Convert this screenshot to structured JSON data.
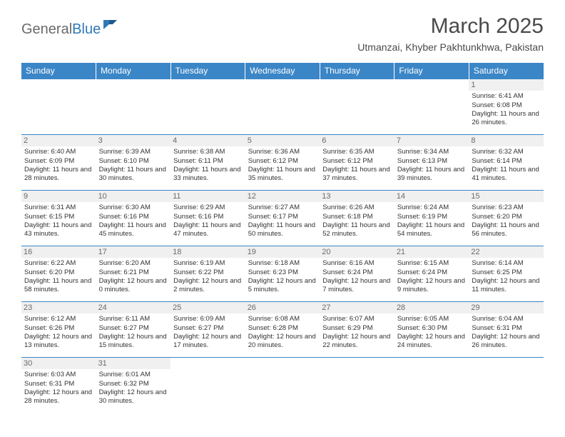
{
  "brand": {
    "name1": "General",
    "name2": "Blue",
    "mark_color": "#2f78b7"
  },
  "title": "March 2025",
  "location": "Utmanzai, Khyber Pakhtunkhwa, Pakistan",
  "colors": {
    "header_bg": "#3b86c6",
    "header_text": "#ffffff",
    "border": "#3b86c6",
    "daynum_bg": "#f0f0f0",
    "text": "#333333"
  },
  "day_headers": [
    "Sunday",
    "Monday",
    "Tuesday",
    "Wednesday",
    "Thursday",
    "Friday",
    "Saturday"
  ],
  "weeks": [
    [
      null,
      null,
      null,
      null,
      null,
      null,
      {
        "n": "1",
        "sunrise": "6:41 AM",
        "sunset": "6:08 PM",
        "daylight": "11 hours and 26 minutes."
      }
    ],
    [
      {
        "n": "2",
        "sunrise": "6:40 AM",
        "sunset": "6:09 PM",
        "daylight": "11 hours and 28 minutes."
      },
      {
        "n": "3",
        "sunrise": "6:39 AM",
        "sunset": "6:10 PM",
        "daylight": "11 hours and 30 minutes."
      },
      {
        "n": "4",
        "sunrise": "6:38 AM",
        "sunset": "6:11 PM",
        "daylight": "11 hours and 33 minutes."
      },
      {
        "n": "5",
        "sunrise": "6:36 AM",
        "sunset": "6:12 PM",
        "daylight": "11 hours and 35 minutes."
      },
      {
        "n": "6",
        "sunrise": "6:35 AM",
        "sunset": "6:12 PM",
        "daylight": "11 hours and 37 minutes."
      },
      {
        "n": "7",
        "sunrise": "6:34 AM",
        "sunset": "6:13 PM",
        "daylight": "11 hours and 39 minutes."
      },
      {
        "n": "8",
        "sunrise": "6:32 AM",
        "sunset": "6:14 PM",
        "daylight": "11 hours and 41 minutes."
      }
    ],
    [
      {
        "n": "9",
        "sunrise": "6:31 AM",
        "sunset": "6:15 PM",
        "daylight": "11 hours and 43 minutes."
      },
      {
        "n": "10",
        "sunrise": "6:30 AM",
        "sunset": "6:16 PM",
        "daylight": "11 hours and 45 minutes."
      },
      {
        "n": "11",
        "sunrise": "6:29 AM",
        "sunset": "6:16 PM",
        "daylight": "11 hours and 47 minutes."
      },
      {
        "n": "12",
        "sunrise": "6:27 AM",
        "sunset": "6:17 PM",
        "daylight": "11 hours and 50 minutes."
      },
      {
        "n": "13",
        "sunrise": "6:26 AM",
        "sunset": "6:18 PM",
        "daylight": "11 hours and 52 minutes."
      },
      {
        "n": "14",
        "sunrise": "6:24 AM",
        "sunset": "6:19 PM",
        "daylight": "11 hours and 54 minutes."
      },
      {
        "n": "15",
        "sunrise": "6:23 AM",
        "sunset": "6:20 PM",
        "daylight": "11 hours and 56 minutes."
      }
    ],
    [
      {
        "n": "16",
        "sunrise": "6:22 AM",
        "sunset": "6:20 PM",
        "daylight": "11 hours and 58 minutes."
      },
      {
        "n": "17",
        "sunrise": "6:20 AM",
        "sunset": "6:21 PM",
        "daylight": "12 hours and 0 minutes."
      },
      {
        "n": "18",
        "sunrise": "6:19 AM",
        "sunset": "6:22 PM",
        "daylight": "12 hours and 2 minutes."
      },
      {
        "n": "19",
        "sunrise": "6:18 AM",
        "sunset": "6:23 PM",
        "daylight": "12 hours and 5 minutes."
      },
      {
        "n": "20",
        "sunrise": "6:16 AM",
        "sunset": "6:24 PM",
        "daylight": "12 hours and 7 minutes."
      },
      {
        "n": "21",
        "sunrise": "6:15 AM",
        "sunset": "6:24 PM",
        "daylight": "12 hours and 9 minutes."
      },
      {
        "n": "22",
        "sunrise": "6:14 AM",
        "sunset": "6:25 PM",
        "daylight": "12 hours and 11 minutes."
      }
    ],
    [
      {
        "n": "23",
        "sunrise": "6:12 AM",
        "sunset": "6:26 PM",
        "daylight": "12 hours and 13 minutes."
      },
      {
        "n": "24",
        "sunrise": "6:11 AM",
        "sunset": "6:27 PM",
        "daylight": "12 hours and 15 minutes."
      },
      {
        "n": "25",
        "sunrise": "6:09 AM",
        "sunset": "6:27 PM",
        "daylight": "12 hours and 17 minutes."
      },
      {
        "n": "26",
        "sunrise": "6:08 AM",
        "sunset": "6:28 PM",
        "daylight": "12 hours and 20 minutes."
      },
      {
        "n": "27",
        "sunrise": "6:07 AM",
        "sunset": "6:29 PM",
        "daylight": "12 hours and 22 minutes."
      },
      {
        "n": "28",
        "sunrise": "6:05 AM",
        "sunset": "6:30 PM",
        "daylight": "12 hours and 24 minutes."
      },
      {
        "n": "29",
        "sunrise": "6:04 AM",
        "sunset": "6:31 PM",
        "daylight": "12 hours and 26 minutes."
      }
    ],
    [
      {
        "n": "30",
        "sunrise": "6:03 AM",
        "sunset": "6:31 PM",
        "daylight": "12 hours and 28 minutes."
      },
      {
        "n": "31",
        "sunrise": "6:01 AM",
        "sunset": "6:32 PM",
        "daylight": "12 hours and 30 minutes."
      },
      null,
      null,
      null,
      null,
      null
    ]
  ],
  "labels": {
    "sunrise": "Sunrise:",
    "sunset": "Sunset:",
    "daylight": "Daylight:"
  }
}
